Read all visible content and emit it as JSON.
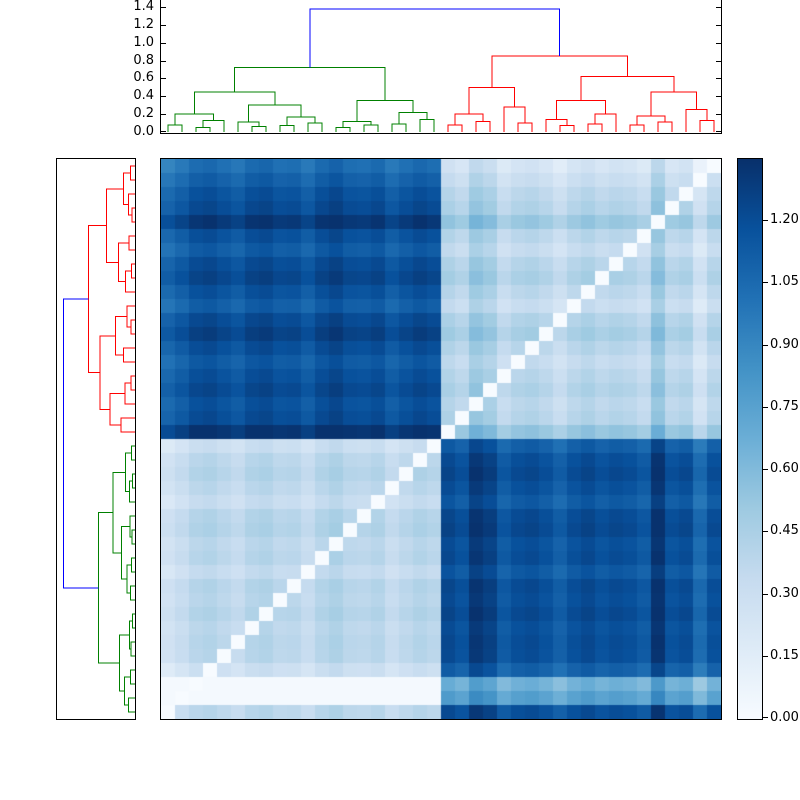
{
  "chart_data": {
    "type": "heatmap",
    "title": "",
    "matrix": {
      "n": 40,
      "row_cluster_sizes": [
        20,
        20
      ],
      "row_cluster_colors": [
        "r",
        "g"
      ],
      "col_cluster_sizes": [
        20,
        20
      ],
      "col_cluster_colors": [
        "g",
        "r"
      ],
      "within_base": 0.32,
      "between_base": 1.12,
      "vmin": 0,
      "vmax": 1.35,
      "diagonal": "zeros where i + j = n - 1",
      "row_offsets": [
        -0.12,
        -0.05,
        0.02,
        0.06,
        0.16,
        0.03,
        -0.03,
        0.05,
        0.09,
        0.02,
        -0.04,
        0.06,
        0.11,
        0.04,
        -0.02,
        0.03,
        0.07,
        0.02,
        0.05,
        0.18,
        -0.05,
        0.03,
        0.06,
        0.02,
        -0.03,
        0.05,
        0.07,
        0.02,
        0.04,
        -0.02,
        0.05,
        0.03,
        0.06,
        0.02,
        0.04,
        0.03,
        -0.06,
        -0.5,
        -0.4,
        0.03
      ],
      "col_offsets": [
        -0.09,
        -0.03,
        0.04,
        0.06,
        0.02,
        -0.02,
        0.05,
        0.07,
        0.02,
        0.03,
        -0.03,
        0.05,
        0.09,
        0.03,
        0.02,
        0.05,
        -0.03,
        0.02,
        0.06,
        0.03,
        0.07,
        0.02,
        0.16,
        0.11,
        -0.02,
        0.04,
        0.06,
        0.02,
        -0.05,
        0.03,
        0.07,
        0.02,
        0.05,
        0.03,
        -0.02,
        0.18,
        0.02,
        0.05,
        -0.11,
        0.03
      ]
    },
    "colormap": {
      "name": "Blues",
      "stops": [
        "#f7fbff",
        "#deebf7",
        "#c6dbef",
        "#9ecae1",
        "#6baed6",
        "#4292c6",
        "#2171b5",
        "#08519c",
        "#08306b"
      ]
    },
    "dendrogram_colors": {
      "b": "#0000ff",
      "g": "#008000",
      "r": "#ff0000"
    },
    "top_dendrogram": {
      "tick_labels": [
        "0.0",
        "0.2",
        "0.4",
        "0.6",
        "0.8",
        "1.0",
        "1.2",
        "1.4"
      ],
      "tick_values": [
        0,
        0.2,
        0.4,
        0.6,
        0.8,
        1.0,
        1.2,
        1.4
      ],
      "tree": [
        1.38,
        "b",
        [
          0.72,
          "g",
          [
            0.45,
            "",
            [
              0.2,
              "",
              [
                0.08,
                "",
                0,
                0
              ],
              [
                0.13,
                "",
                [
                  0.05,
                  "",
                  0,
                  0
                ],
                0
              ]
            ],
            [
              0.3,
              "",
              [
                0.11,
                "",
                0,
                [
                  0.06,
                  "",
                  0,
                  0
                ]
              ],
              [
                0.17,
                "",
                [
                  0.07,
                  "",
                  0,
                  0
                ],
                [
                  0.1,
                  "",
                  0,
                  0
                ]
              ]
            ]
          ],
          [
            0.35,
            "",
            [
              0.12,
              "",
              [
                0.05,
                "",
                0,
                0
              ],
              [
                0.08,
                "",
                0,
                0
              ]
            ],
            [
              0.22,
              "",
              [
                0.09,
                "",
                0,
                0
              ],
              [
                0.14,
                "",
                0,
                0
              ]
            ]
          ]
        ],
        [
          0.85,
          "r",
          [
            0.5,
            "",
            [
              0.2,
              "",
              [
                0.08,
                "",
                0,
                0
              ],
              [
                0.12,
                "",
                0,
                0
              ]
            ],
            [
              0.28,
              "",
              0,
              [
                0.1,
                "",
                0,
                0
              ]
            ]
          ],
          [
            0.62,
            "",
            [
              0.35,
              "",
              [
                0.14,
                "",
                0,
                [
                  0.07,
                  "",
                  0,
                  0
                ]
              ],
              [
                0.2,
                "",
                [
                  0.09,
                  "",
                  0,
                  0
                ],
                0
              ]
            ],
            [
              0.45,
              "",
              [
                0.18,
                "",
                [
                  0.08,
                  "",
                  0,
                  0
                ],
                [
                  0.11,
                  "",
                  0,
                  0
                ]
              ],
              [
                0.25,
                "",
                0,
                [
                  0.13,
                  "",
                  0,
                  0
                ]
              ]
            ]
          ]
        ]
      ]
    },
    "left_dendrogram": {
      "tree": [
        1.38,
        "b",
        [
          0.9,
          "r",
          [
            0.55,
            "",
            [
              0.22,
              "",
              [
                0.09,
                "",
                0,
                0
              ],
              [
                0.13,
                "",
                0,
                [
                  0.06,
                  "",
                  0,
                  0
                ]
              ]
            ],
            [
              0.32,
              "",
              [
                0.12,
                "",
                0,
                0
              ],
              [
                0.18,
                "",
                [
                  0.07,
                  "",
                  0,
                  0
                ],
                0
              ]
            ]
          ],
          [
            0.68,
            "",
            [
              0.38,
              "",
              [
                0.15,
                "",
                0,
                [
                  0.08,
                  "",
                  0,
                  0
                ]
              ],
              [
                0.22,
                "",
                0,
                0
              ]
            ],
            [
              0.48,
              "",
              [
                0.19,
                "",
                [
                  0.08,
                  "",
                  0,
                  0
                ],
                0
              ],
              [
                0.27,
                "",
                0,
                0
              ]
            ]
          ]
        ],
        [
          0.7,
          "g",
          [
            0.42,
            "",
            [
              0.18,
              "",
              [
                0.07,
                "",
                0,
                0
              ],
              [
                0.11,
                "",
                [
                  0.05,
                  "",
                  0,
                  0
                ],
                0
              ]
            ],
            [
              0.26,
              "",
              [
                0.1,
                "",
                0,
                [
                  0.06,
                  "",
                  0,
                  0
                ]
              ],
              [
                0.15,
                "",
                [
                  0.07,
                  "",
                  0,
                  0
                ],
                [
                  0.09,
                  "",
                  0,
                  0
                ]
              ]
            ]
          ],
          [
            0.3,
            "",
            [
              0.11,
              "",
              [
                0.05,
                "",
                0,
                0
              ],
              [
                0.08,
                "",
                0,
                0
              ]
            ],
            [
              0.2,
              "",
              [
                0.09,
                "",
                0,
                0
              ],
              [
                0.13,
                "",
                0,
                0
              ]
            ]
          ]
        ]
      ]
    },
    "colorbar": {
      "tick_labels": [
        "0.00",
        "0.15",
        "0.30",
        "0.45",
        "0.60",
        "0.75",
        "0.90",
        "1.05",
        "1.20"
      ],
      "tick_values": [
        0,
        0.15,
        0.3,
        0.45,
        0.6,
        0.75,
        0.9,
        1.05,
        1.2
      ],
      "vmax": 1.35
    }
  }
}
